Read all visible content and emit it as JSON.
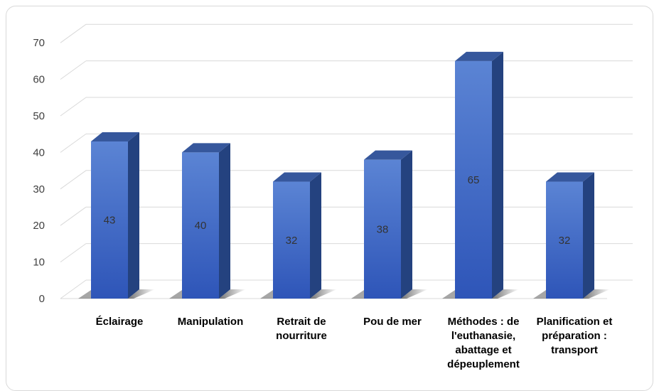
{
  "chart_data": {
    "type": "bar",
    "categories": [
      [
        "Éclairage"
      ],
      [
        "Manipulation"
      ],
      [
        "Retrait de",
        "nourriture"
      ],
      [
        "Pou de mer"
      ],
      [
        "Méthodes : de",
        "l'euthanasie,",
        "abattage et",
        "dépeuplement"
      ],
      [
        "Planification et",
        "préparation :",
        "transport"
      ]
    ],
    "values": [
      43,
      40,
      32,
      38,
      65,
      32
    ],
    "data_labels": [
      "43",
      "40",
      "32",
      "38",
      "65",
      "32"
    ],
    "yticks": [
      "0",
      "10",
      "20",
      "30",
      "40",
      "50",
      "60",
      "70"
    ],
    "ylim": [
      0,
      70
    ],
    "grid": true,
    "style": "3d-column",
    "colors": {
      "bar_front_top": "#5b84d4",
      "bar_front_bottom": "#2e55b8",
      "bar_side": "#24427f",
      "bar_top": "#36579c",
      "grid": "#d9d9d9"
    }
  }
}
